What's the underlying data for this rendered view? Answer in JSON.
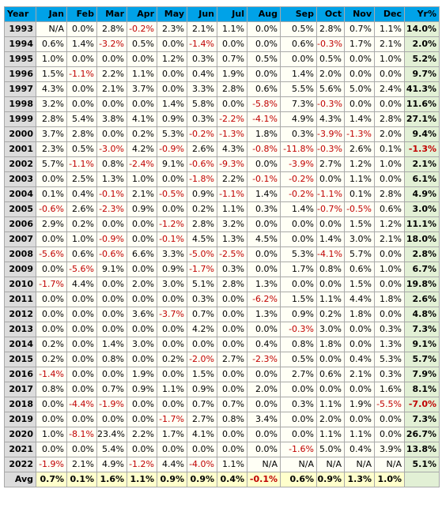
{
  "headers": [
    "Year",
    "Jan",
    "Feb",
    "Mar",
    "Apr",
    "May",
    "Jun",
    "Jul",
    "Aug",
    "Sep",
    "Oct",
    "Nov",
    "Dec",
    "Yr%"
  ],
  "rows": [
    {
      "year": "1993",
      "months": [
        "N/A",
        "0.0%",
        "2.8%",
        "-0.2%",
        "2.3%",
        "2.1%",
        "1.1%",
        "0.0%",
        "0.5%",
        "2.8%",
        "0.7%",
        "1.1%"
      ],
      "total": "14.0%"
    },
    {
      "year": "1994",
      "months": [
        "0.6%",
        "1.4%",
        "-3.2%",
        "0.5%",
        "0.0%",
        "-1.4%",
        "0.0%",
        "0.0%",
        "0.6%",
        "-0.3%",
        "1.7%",
        "2.1%"
      ],
      "total": "2.0%"
    },
    {
      "year": "1995",
      "months": [
        "1.0%",
        "0.0%",
        "0.0%",
        "0.0%",
        "1.2%",
        "0.3%",
        "0.7%",
        "0.5%",
        "0.0%",
        "0.5%",
        "0.0%",
        "1.0%"
      ],
      "total": "5.2%"
    },
    {
      "year": "1996",
      "months": [
        "1.5%",
        "-1.1%",
        "2.2%",
        "1.1%",
        "0.0%",
        "0.4%",
        "1.9%",
        "0.0%",
        "1.4%",
        "2.0%",
        "0.0%",
        "0.0%"
      ],
      "total": "9.7%"
    },
    {
      "year": "1997",
      "months": [
        "4.3%",
        "0.0%",
        "2.1%",
        "3.7%",
        "0.0%",
        "3.3%",
        "2.8%",
        "0.6%",
        "5.5%",
        "5.6%",
        "5.0%",
        "2.4%"
      ],
      "total": "41.3%"
    },
    {
      "year": "1998",
      "months": [
        "3.2%",
        "0.0%",
        "0.0%",
        "0.0%",
        "1.4%",
        "5.8%",
        "0.0%",
        "-5.8%",
        "7.3%",
        "-0.3%",
        "0.0%",
        "0.0%"
      ],
      "total": "11.6%"
    },
    {
      "year": "1999",
      "months": [
        "2.8%",
        "5.4%",
        "3.8%",
        "4.1%",
        "0.9%",
        "0.3%",
        "-2.2%",
        "-4.1%",
        "4.9%",
        "4.3%",
        "1.4%",
        "2.8%"
      ],
      "total": "27.1%"
    },
    {
      "year": "2000",
      "months": [
        "3.7%",
        "2.8%",
        "0.0%",
        "0.2%",
        "5.3%",
        "-0.2%",
        "-1.3%",
        "1.8%",
        "0.3%",
        "-3.9%",
        "-1.3%",
        "2.0%"
      ],
      "total": "9.4%"
    },
    {
      "year": "2001",
      "months": [
        "2.3%",
        "0.5%",
        "-3.0%",
        "4.2%",
        "-0.9%",
        "2.6%",
        "4.3%",
        "-0.8%",
        "-11.8%",
        "-0.3%",
        "2.6%",
        "0.1%"
      ],
      "total": "-1.3%"
    },
    {
      "year": "2002",
      "months": [
        "5.7%",
        "-1.1%",
        "0.8%",
        "-2.4%",
        "9.1%",
        "-0.6%",
        "-9.3%",
        "0.0%",
        "-3.9%",
        "2.7%",
        "1.2%",
        "1.0%"
      ],
      "total": "2.1%"
    },
    {
      "year": "2003",
      "months": [
        "0.0%",
        "2.5%",
        "1.3%",
        "1.0%",
        "0.0%",
        "-1.8%",
        "2.2%",
        "-0.1%",
        "-0.2%",
        "0.0%",
        "1.1%",
        "0.0%"
      ],
      "total": "6.1%"
    },
    {
      "year": "2004",
      "months": [
        "0.1%",
        "0.4%",
        "-0.1%",
        "2.1%",
        "-0.5%",
        "0.9%",
        "-1.1%",
        "1.4%",
        "-0.2%",
        "-1.1%",
        "0.1%",
        "2.8%"
      ],
      "total": "4.9%"
    },
    {
      "year": "2005",
      "months": [
        "-0.6%",
        "2.6%",
        "-2.3%",
        "0.9%",
        "0.0%",
        "0.2%",
        "1.1%",
        "0.3%",
        "1.4%",
        "-0.7%",
        "-0.5%",
        "0.6%"
      ],
      "total": "3.0%"
    },
    {
      "year": "2006",
      "months": [
        "2.9%",
        "0.2%",
        "0.0%",
        "0.0%",
        "-1.2%",
        "2.8%",
        "3.2%",
        "0.0%",
        "0.0%",
        "0.0%",
        "1.5%",
        "1.2%"
      ],
      "total": "11.1%"
    },
    {
      "year": "2007",
      "months": [
        "0.0%",
        "1.0%",
        "-0.9%",
        "0.0%",
        "-0.1%",
        "4.5%",
        "1.3%",
        "4.5%",
        "0.0%",
        "1.4%",
        "3.0%",
        "2.1%"
      ],
      "total": "18.0%"
    },
    {
      "year": "2008",
      "months": [
        "-5.6%",
        "0.6%",
        "-0.6%",
        "6.6%",
        "3.3%",
        "-5.0%",
        "-2.5%",
        "0.0%",
        "5.3%",
        "-4.1%",
        "5.7%",
        "0.0%"
      ],
      "total": "2.8%"
    },
    {
      "year": "2009",
      "months": [
        "0.0%",
        "-5.6%",
        "9.1%",
        "0.0%",
        "0.9%",
        "-1.7%",
        "0.3%",
        "0.0%",
        "1.7%",
        "0.8%",
        "0.6%",
        "1.0%"
      ],
      "total": "6.7%"
    },
    {
      "year": "2010",
      "months": [
        "-1.7%",
        "4.4%",
        "0.0%",
        "2.0%",
        "3.0%",
        "5.1%",
        "2.8%",
        "1.3%",
        "0.0%",
        "0.0%",
        "1.5%",
        "0.0%"
      ],
      "total": "19.8%"
    },
    {
      "year": "2011",
      "months": [
        "0.0%",
        "0.0%",
        "0.0%",
        "0.0%",
        "0.0%",
        "0.3%",
        "0.0%",
        "-6.2%",
        "1.5%",
        "1.1%",
        "4.4%",
        "1.8%"
      ],
      "total": "2.6%"
    },
    {
      "year": "2012",
      "months": [
        "0.0%",
        "0.0%",
        "0.0%",
        "3.6%",
        "-3.7%",
        "0.7%",
        "0.0%",
        "1.3%",
        "0.9%",
        "0.2%",
        "1.8%",
        "0.0%"
      ],
      "total": "4.8%"
    },
    {
      "year": "2013",
      "months": [
        "0.0%",
        "0.0%",
        "0.0%",
        "0.0%",
        "0.0%",
        "4.2%",
        "0.0%",
        "0.0%",
        "-0.3%",
        "3.0%",
        "0.0%",
        "0.3%"
      ],
      "total": "7.3%"
    },
    {
      "year": "2014",
      "months": [
        "0.2%",
        "0.0%",
        "1.4%",
        "3.0%",
        "0.0%",
        "0.0%",
        "0.0%",
        "0.4%",
        "0.8%",
        "1.8%",
        "0.0%",
        "1.3%"
      ],
      "total": "9.1%"
    },
    {
      "year": "2015",
      "months": [
        "0.2%",
        "0.0%",
        "0.8%",
        "0.0%",
        "0.2%",
        "-2.0%",
        "2.7%",
        "-2.3%",
        "0.5%",
        "0.0%",
        "0.4%",
        "5.3%"
      ],
      "total": "5.7%"
    },
    {
      "year": "2016",
      "months": [
        "-1.4%",
        "0.0%",
        "0.0%",
        "1.9%",
        "0.0%",
        "1.5%",
        "0.0%",
        "0.0%",
        "2.7%",
        "0.6%",
        "2.1%",
        "0.3%"
      ],
      "total": "7.9%"
    },
    {
      "year": "2017",
      "months": [
        "0.8%",
        "0.0%",
        "0.7%",
        "0.9%",
        "1.1%",
        "0.9%",
        "0.0%",
        "2.0%",
        "0.0%",
        "0.0%",
        "0.0%",
        "1.6%"
      ],
      "total": "8.1%"
    },
    {
      "year": "2018",
      "months": [
        "0.0%",
        "-4.4%",
        "-1.9%",
        "0.0%",
        "0.0%",
        "0.7%",
        "0.7%",
        "0.0%",
        "0.3%",
        "1.1%",
        "1.9%",
        "-5.5%"
      ],
      "total": "-7.0%"
    },
    {
      "year": "2019",
      "months": [
        "0.0%",
        "0.0%",
        "0.0%",
        "0.0%",
        "-1.7%",
        "2.7%",
        "0.8%",
        "3.4%",
        "0.0%",
        "2.0%",
        "0.0%",
        "0.0%"
      ],
      "total": "7.3%"
    },
    {
      "year": "2020",
      "months": [
        "1.0%",
        "-8.1%",
        "23.4%",
        "2.2%",
        "1.7%",
        "4.1%",
        "0.0%",
        "0.0%",
        "0.0%",
        "1.1%",
        "1.1%",
        "0.0%"
      ],
      "total": "26.7%"
    },
    {
      "year": "2021",
      "months": [
        "0.0%",
        "0.0%",
        "5.4%",
        "0.0%",
        "0.0%",
        "0.0%",
        "0.0%",
        "0.0%",
        "-1.6%",
        "5.0%",
        "0.4%",
        "3.9%"
      ],
      "total": "13.8%"
    },
    {
      "year": "2022",
      "months": [
        "-1.9%",
        "2.1%",
        "4.9%",
        "-1.2%",
        "4.4%",
        "-4.0%",
        "1.1%",
        "N/A",
        "N/A",
        "N/A",
        "N/A",
        "N/A"
      ],
      "total": "5.1%"
    }
  ],
  "average": {
    "label": "Avg",
    "months": [
      "0.7%",
      "0.1%",
      "1.6%",
      "1.1%",
      "0.9%",
      "0.9%",
      "0.4%",
      "-0.1%",
      "0.6%",
      "0.9%",
      "1.3%",
      "1.0%"
    ],
    "total": ""
  },
  "colors": {
    "header_bg": "#00a2e8",
    "year_bg": "#dcdcdc",
    "cell_bg": "#fffff5",
    "total_bg": "#e2f0d5",
    "avg_bg": "#ffffcc",
    "negative_text": "#c00000"
  }
}
